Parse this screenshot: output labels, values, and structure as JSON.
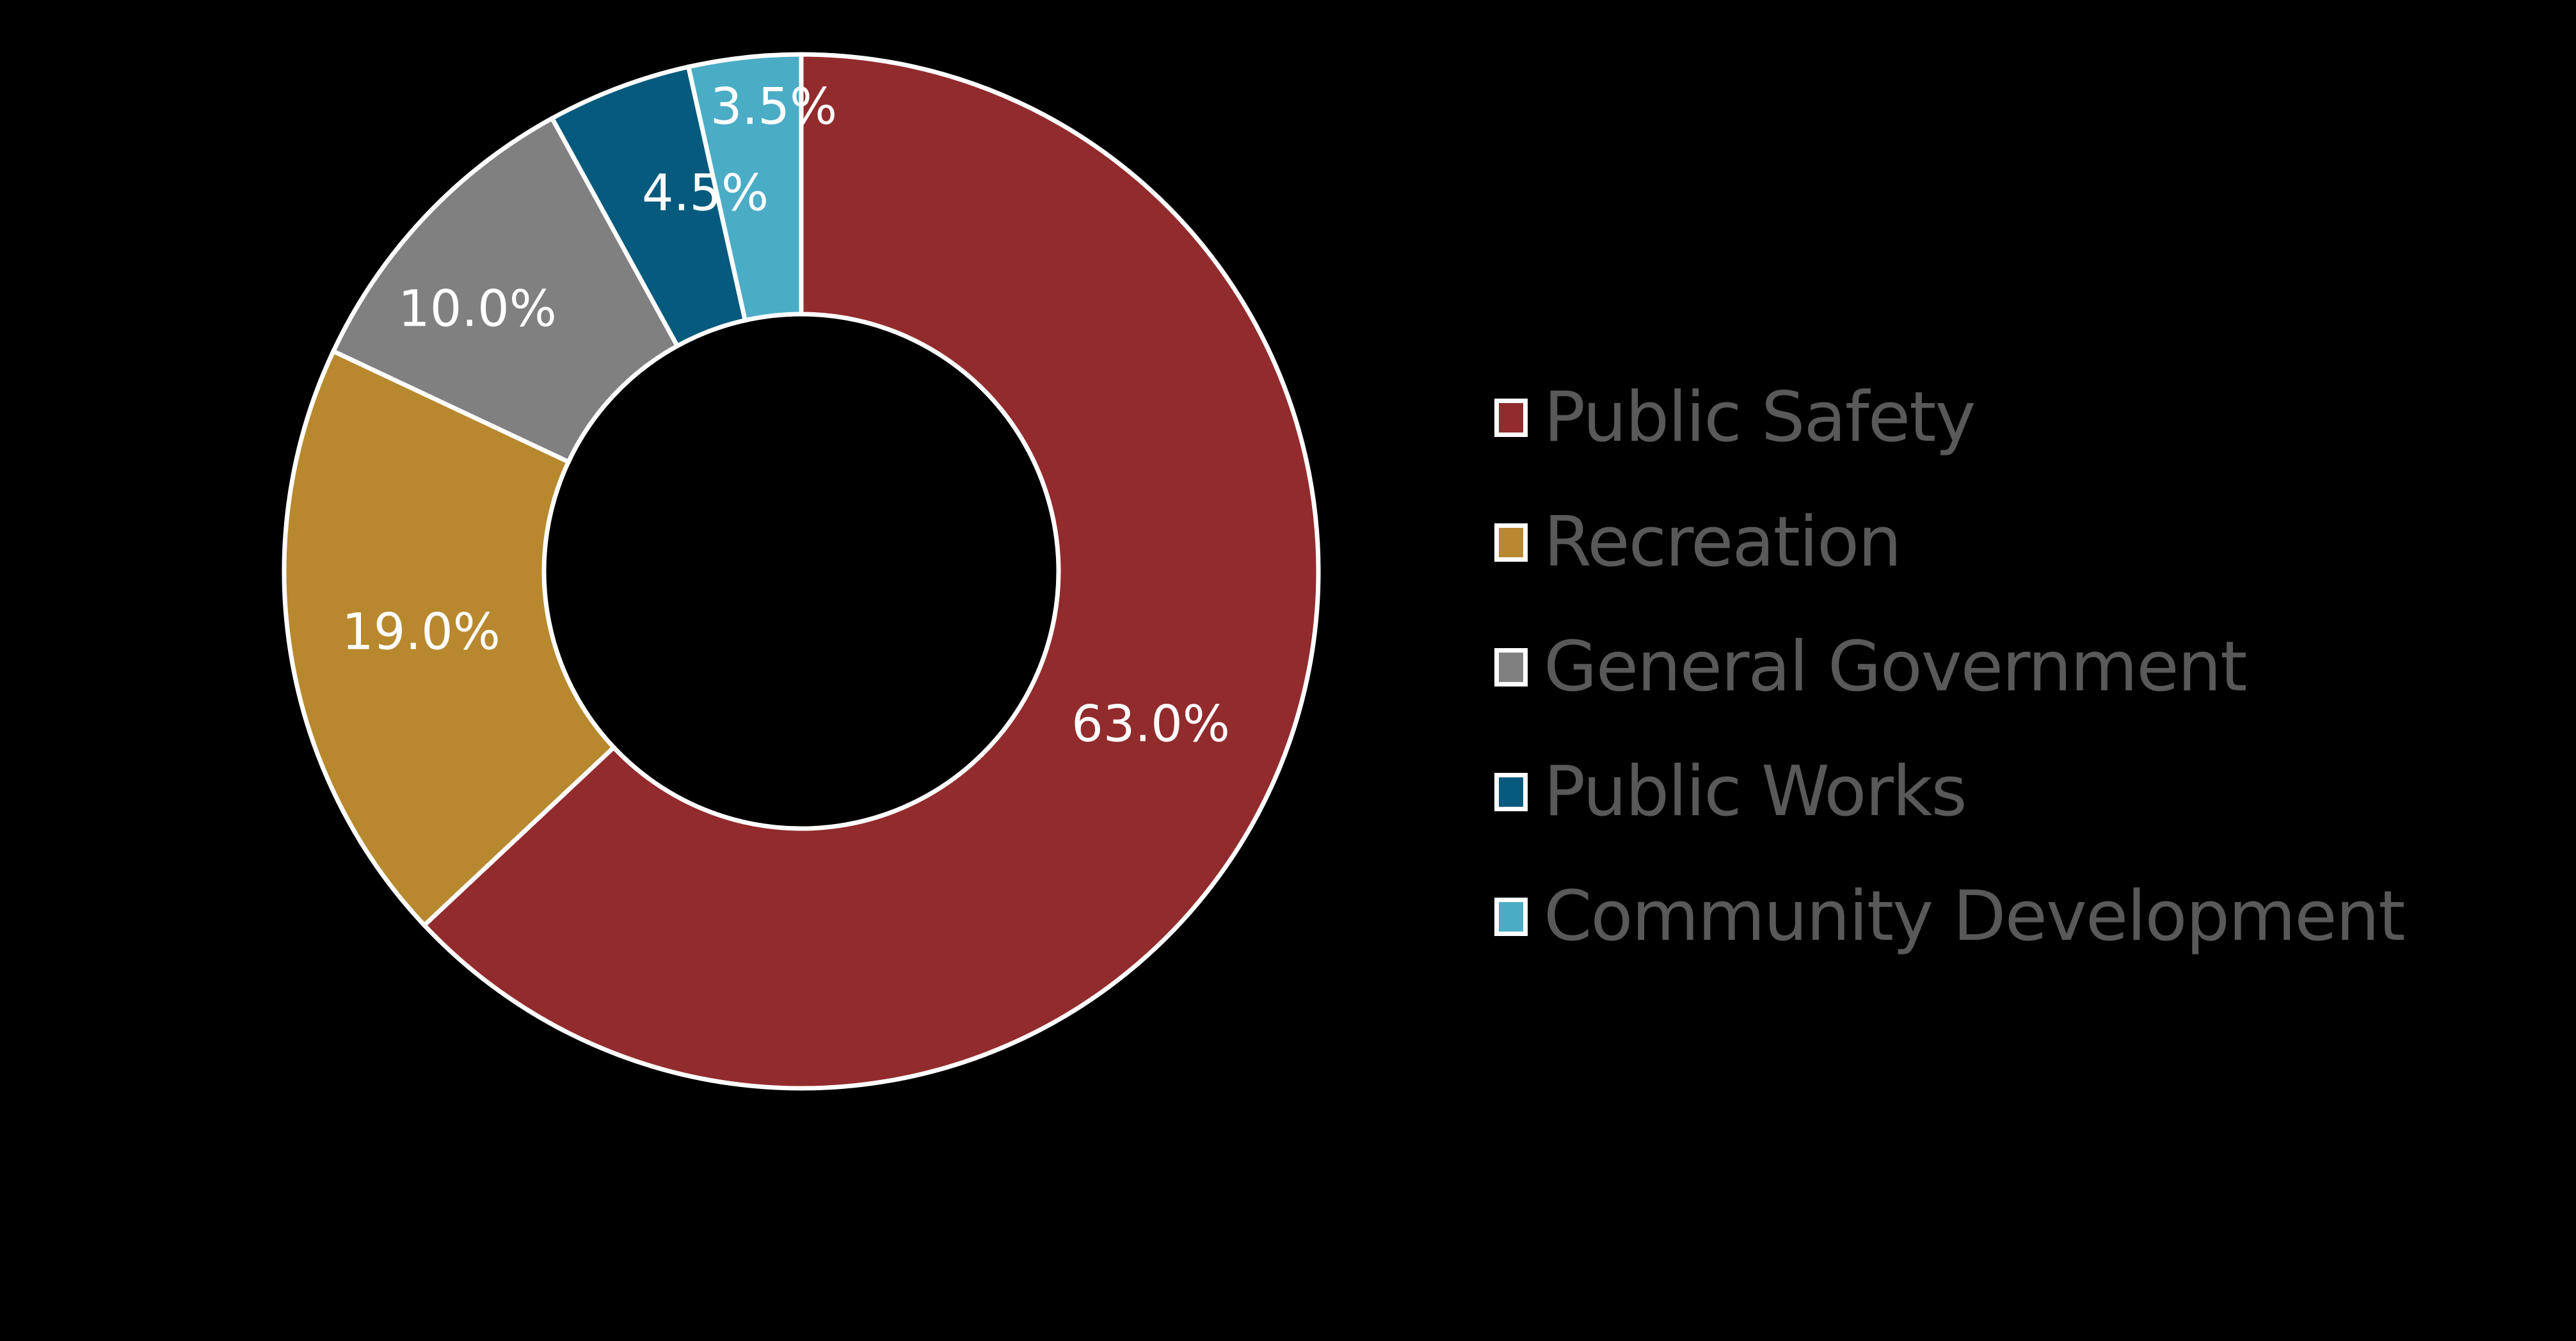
{
  "chart_data": {
    "type": "pie",
    "subtype": "donut",
    "title": "",
    "categories": [
      "Public Safety",
      "Recreation",
      "General Government",
      "Public Works",
      "Community Development"
    ],
    "values": [
      63.0,
      19.0,
      10.0,
      4.5,
      3.5
    ],
    "labels": [
      "63.0%",
      "19.0%",
      "10.0%",
      "4.5%",
      "3.5%"
    ],
    "colors": [
      "#922B2D",
      "#B8882E",
      "#808080",
      "#055A7E",
      "#4BACC6"
    ],
    "start_angle_deg": 0,
    "direction": "clockwise",
    "legend_position": "right",
    "background": "#000000",
    "slice_border_color": "#FFFFFF"
  },
  "legend": {
    "items": [
      {
        "label": "Public Safety",
        "color": "#922B2D"
      },
      {
        "label": "Recreation",
        "color": "#B8882E"
      },
      {
        "label": "General Government",
        "color": "#808080"
      },
      {
        "label": "Public Works",
        "color": "#055A7E"
      },
      {
        "label": "Community Development",
        "color": "#4BACC6"
      }
    ]
  }
}
